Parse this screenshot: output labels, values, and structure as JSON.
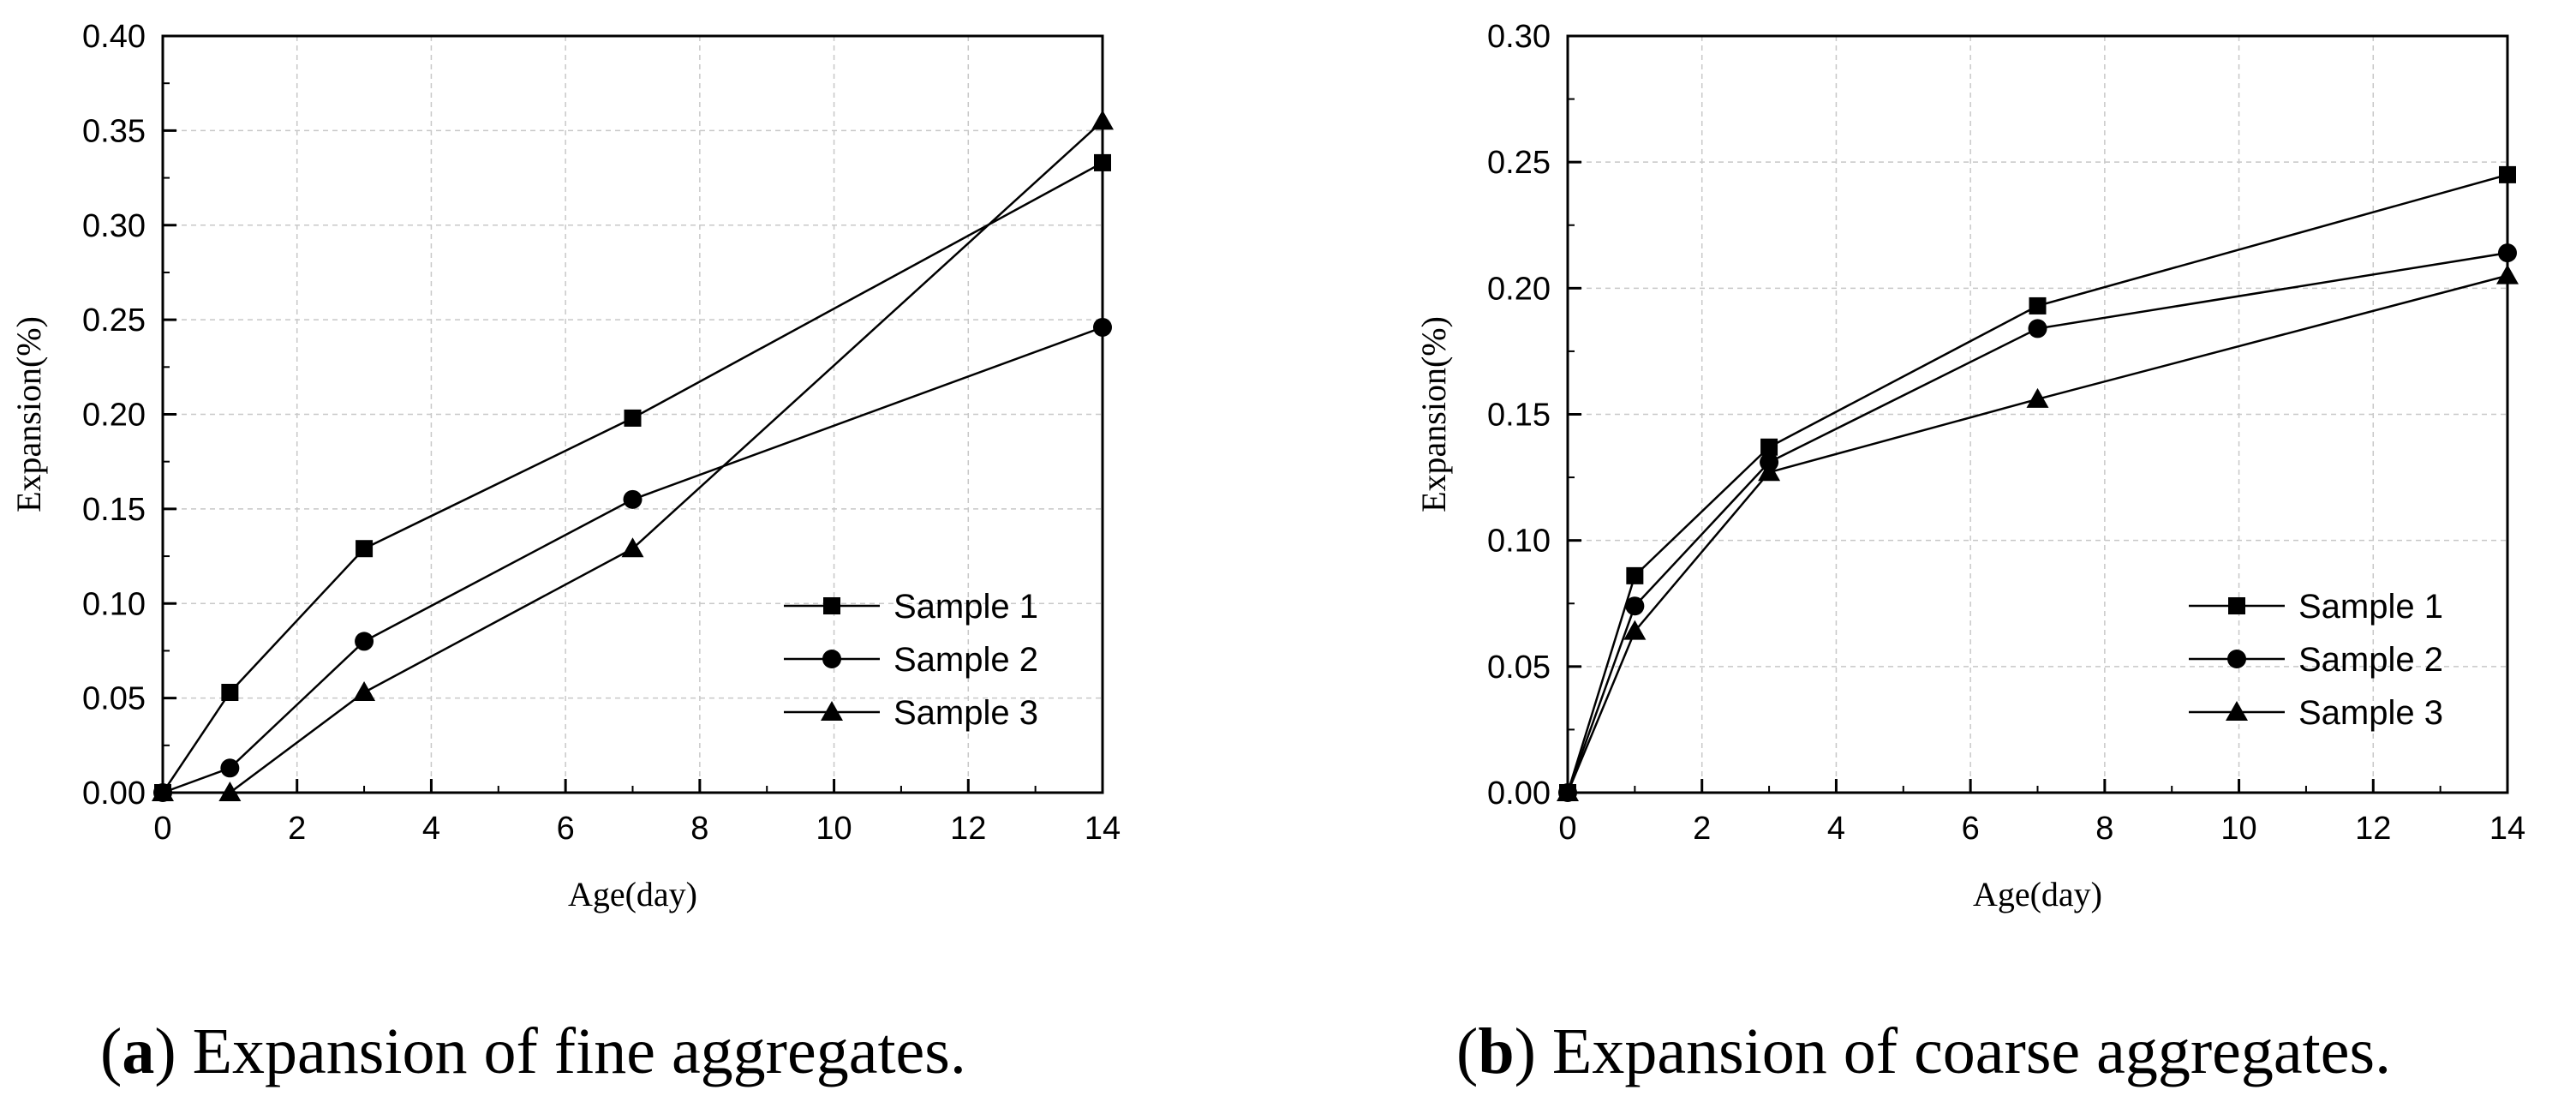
{
  "chart_data": [
    {
      "type": "line",
      "panel": "a",
      "caption_letter": "a",
      "caption_text": " Expansion of fine aggregates.",
      "xlabel": "Age(day)",
      "ylabel": "Expansion(%)",
      "xlim": [
        0,
        14
      ],
      "ylim": [
        0,
        0.4
      ],
      "xticks": [
        0,
        2,
        4,
        6,
        8,
        10,
        12,
        14
      ],
      "xtick_labels": [
        "0",
        "2",
        "4",
        "6",
        "8",
        "10",
        "12",
        "14"
      ],
      "yticks": [
        0,
        0.05,
        0.1,
        0.15,
        0.2,
        0.25,
        0.3,
        0.35,
        0.4
      ],
      "ytick_labels": [
        "0.00",
        "0.05",
        "0.10",
        "0.15",
        "0.20",
        "0.25",
        "0.30",
        "0.35",
        "0.40"
      ],
      "grid": true,
      "legend_position": "lower-right",
      "series": [
        {
          "name": "Sample 1",
          "marker": "square",
          "x": [
            0,
            1,
            3,
            7,
            14
          ],
          "y": [
            0.0,
            0.053,
            0.129,
            0.198,
            0.333
          ]
        },
        {
          "name": "Sample 2",
          "marker": "circle",
          "x": [
            0,
            1,
            3,
            7,
            14
          ],
          "y": [
            0.0,
            0.013,
            0.08,
            0.155,
            0.246
          ]
        },
        {
          "name": "Sample 3",
          "marker": "triangle",
          "x": [
            0,
            1,
            3,
            7,
            14
          ],
          "y": [
            0.0,
            0.0,
            0.053,
            0.129,
            0.355
          ]
        }
      ]
    },
    {
      "type": "line",
      "panel": "b",
      "caption_letter": "b",
      "caption_text": " Expansion of coarse aggregates.",
      "xlabel": "Age(day)",
      "ylabel": "Expansion(%)",
      "xlim": [
        0,
        14
      ],
      "ylim": [
        0,
        0.3
      ],
      "xticks": [
        0,
        2,
        4,
        6,
        8,
        10,
        12,
        14
      ],
      "xtick_labels": [
        "0",
        "2",
        "4",
        "6",
        "8",
        "10",
        "12",
        "14"
      ],
      "yticks": [
        0,
        0.05,
        0.1,
        0.15,
        0.2,
        0.25,
        0.3
      ],
      "ytick_labels": [
        "0.00",
        "0.05",
        "0.10",
        "0.15",
        "0.20",
        "0.25",
        "0.30"
      ],
      "grid": true,
      "legend_position": "lower-right",
      "series": [
        {
          "name": "Sample 1",
          "marker": "square",
          "x": [
            0,
            1,
            3,
            7,
            14
          ],
          "y": [
            0.0,
            0.086,
            0.137,
            0.193,
            0.245
          ]
        },
        {
          "name": "Sample 2",
          "marker": "circle",
          "x": [
            0,
            1,
            3,
            7,
            14
          ],
          "y": [
            0.0,
            0.074,
            0.131,
            0.184,
            0.214
          ]
        },
        {
          "name": "Sample 3",
          "marker": "triangle",
          "x": [
            0,
            1,
            3,
            7,
            14
          ],
          "y": [
            0.0,
            0.064,
            0.127,
            0.156,
            0.205
          ]
        }
      ]
    }
  ]
}
